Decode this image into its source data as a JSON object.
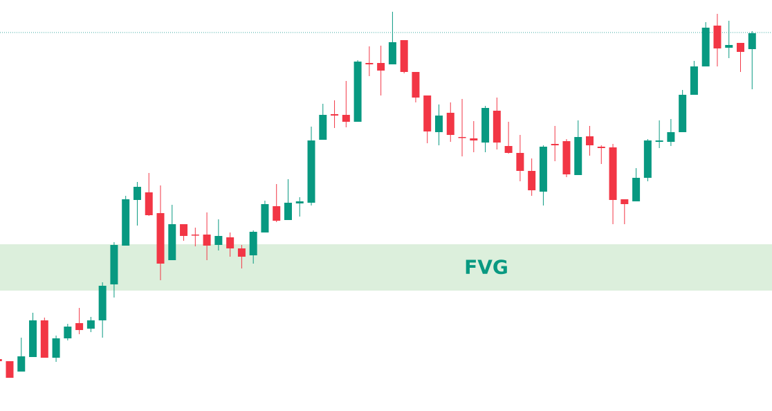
{
  "chart_data": {
    "type": "candlestick",
    "ylim": [
      0,
      594
    ],
    "up_color": "#089981",
    "down_color": "#f23645",
    "open": [
      75,
      72,
      57,
      78,
      131,
      77,
      105,
      127,
      119,
      131,
      183,
      239,
      305,
      316,
      286,
      218,
      270,
      255,
      255,
      240,
      251,
      235,
      225,
      258,
      296,
      276,
      300,
      301,
      392,
      429,
      428,
      418,
      503,
      503,
      501,
      536,
      490,
      456,
      403,
      431,
      396,
      394,
      388,
      434,
      383,
      373,
      347,
      317,
      386,
      390,
      341,
      397,
      382,
      381,
      306,
      303,
      337,
      389,
      389,
      403,
      457,
      498,
      557,
      525,
      532,
      523
    ],
    "high": [
      75,
      72,
      106,
      142,
      135,
      109,
      126,
      149,
      136,
      186,
      244,
      311,
      331,
      344,
      326,
      298,
      270,
      265,
      287,
      277,
      258,
      240,
      261,
      304,
      328,
      335,
      309,
      411,
      444,
      449,
      477,
      507,
      527,
      528,
      577,
      536,
      490,
      456,
      443,
      446,
      451,
      419,
      441,
      453,
      418,
      399,
      365,
      384,
      412,
      393,
      420,
      412,
      384,
      386,
      306,
      351,
      393,
      420,
      422,
      464,
      506,
      562,
      574,
      564,
      532,
      549
    ],
    "low": [
      72,
      48,
      57,
      78,
      77,
      71,
      102,
      111,
      114,
      106,
      164,
      239,
      268,
      282,
      189,
      218,
      246,
      238,
      218,
      232,
      223,
      206,
      213,
      258,
      273,
      276,
      281,
      297,
      392,
      409,
      410,
      418,
      484,
      456,
      501,
      488,
      446,
      387,
      384,
      389,
      368,
      374,
      374,
      378,
      372,
      332,
      311,
      297,
      361,
      338,
      341,
      369,
      357,
      270,
      270,
      303,
      332,
      380,
      383,
      403,
      457,
      498,
      498,
      510,
      490,
      465
    ],
    "close": [
      72,
      48,
      79,
      131,
      77,
      105,
      122,
      117,
      131,
      181,
      240,
      306,
      324,
      283,
      213,
      270,
      253,
      254,
      239,
      253,
      235,
      223,
      259,
      299,
      275,
      301,
      303,
      391,
      428,
      427,
      418,
      505,
      501,
      492,
      533,
      490,
      453,
      404,
      427,
      399,
      395,
      391,
      438,
      388,
      373,
      347,
      319,
      382,
      384,
      342,
      396,
      384,
      380,
      305,
      299,
      337,
      391,
      391,
      403,
      457,
      498,
      554,
      524,
      529,
      519,
      546
    ],
    "level": 547,
    "level_color": "#3aa8a0",
    "zone": {
      "from": 174,
      "to": 241,
      "label": "FVG",
      "color": "#dcefdc",
      "label_color": "#089981"
    }
  }
}
